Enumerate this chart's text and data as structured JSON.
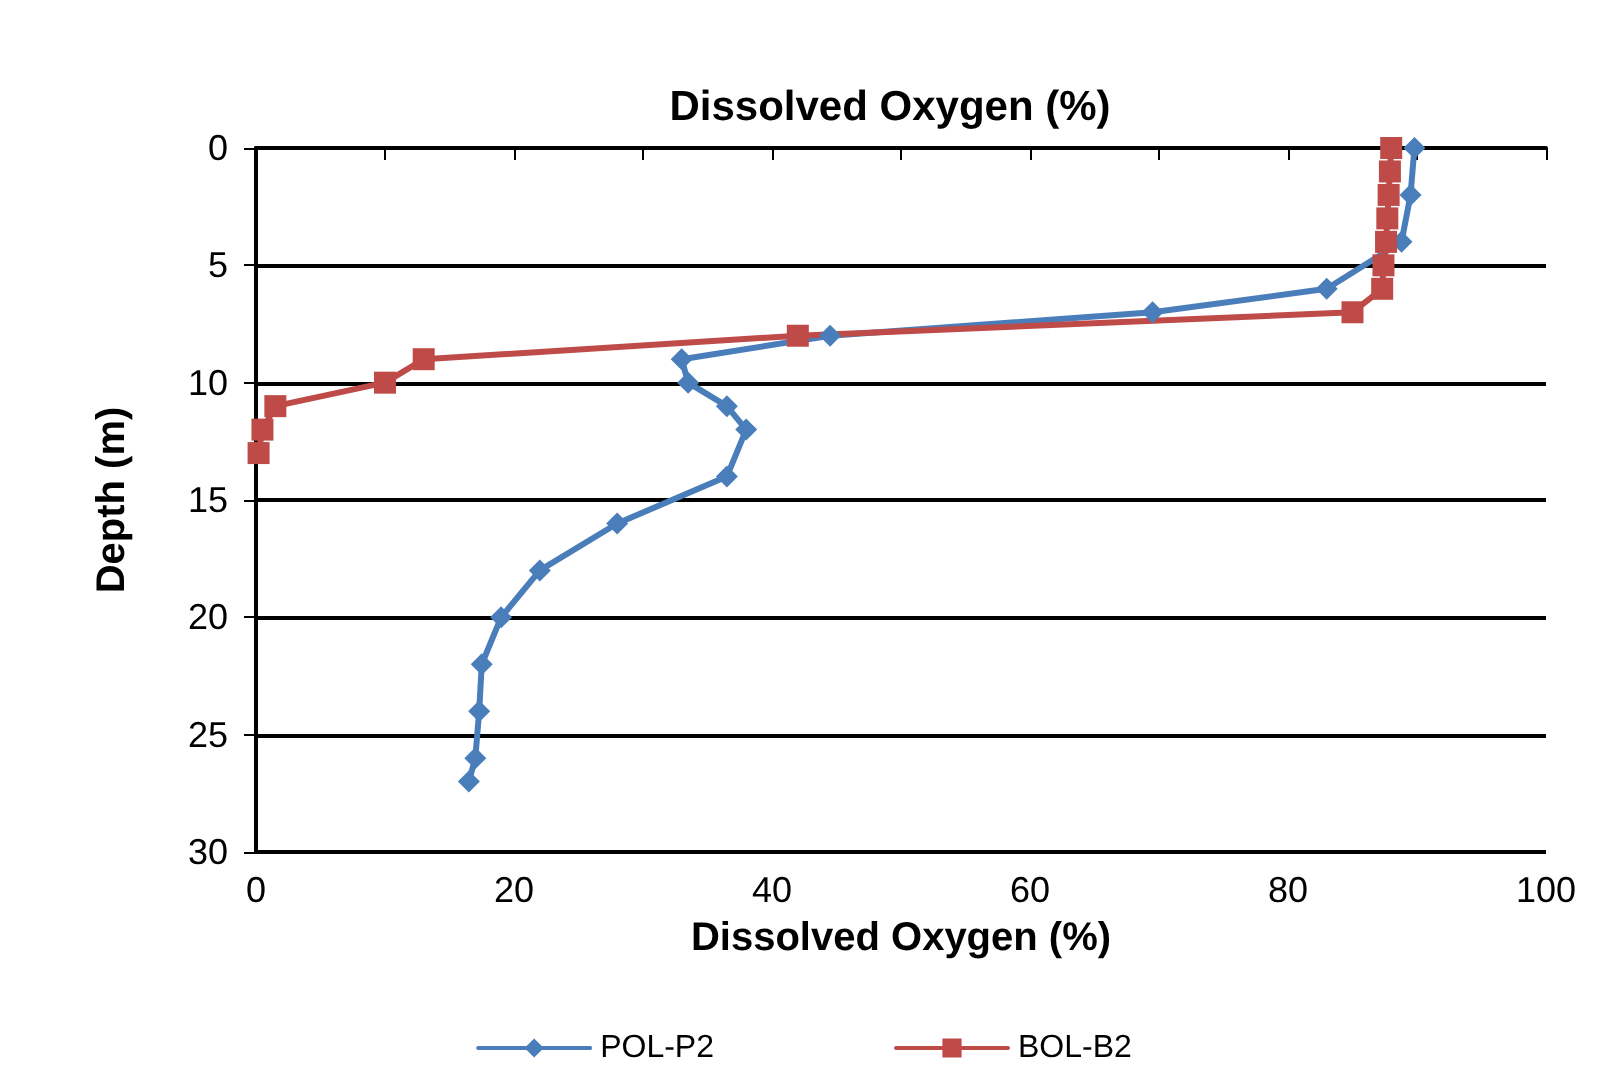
{
  "chart_data": {
    "type": "line",
    "title": "Dissolved Oxygen (%)",
    "xlabel": "Dissolved Oxygen (%)",
    "ylabel": "Depth (m)",
    "xlim": [
      0,
      100
    ],
    "xticks": [
      0,
      {
        "value": 10,
        "label": null
      },
      20,
      {
        "value": 30,
        "label": null
      },
      40,
      {
        "value": 50,
        "label": null
      },
      60,
      {
        "value": 70,
        "label": null
      },
      80,
      {
        "value": 90,
        "label": null
      },
      100
    ],
    "ylim": [
      30,
      0
    ],
    "yticks": [
      0,
      5,
      10,
      15,
      20,
      25,
      30
    ],
    "grid": "y",
    "legend": "bottom",
    "series": [
      {
        "name": "POL-P2",
        "color": "#4a7ebb",
        "marker": "diamond",
        "x": [
          89.8,
          89.5,
          88.8,
          83,
          69.5,
          44.5,
          33,
          33.5,
          36.5,
          38,
          36.5,
          28,
          22,
          19,
          17.5,
          17.3,
          17,
          16.5
        ],
        "values": [
          0,
          2,
          4,
          6,
          7,
          8,
          9,
          10,
          11,
          12,
          14,
          16,
          18,
          20,
          22,
          24,
          26,
          27
        ]
      },
      {
        "name": "BOL-B2",
        "color": "#be4b48",
        "marker": "square",
        "x": [
          88,
          87.9,
          87.8,
          87.7,
          87.6,
          87.4,
          87.3,
          85,
          42,
          13,
          10,
          1.5,
          0.5,
          0.2
        ],
        "values": [
          0,
          1,
          2,
          3,
          4,
          5,
          6,
          7,
          8,
          9,
          10,
          11,
          12,
          13
        ]
      }
    ]
  }
}
